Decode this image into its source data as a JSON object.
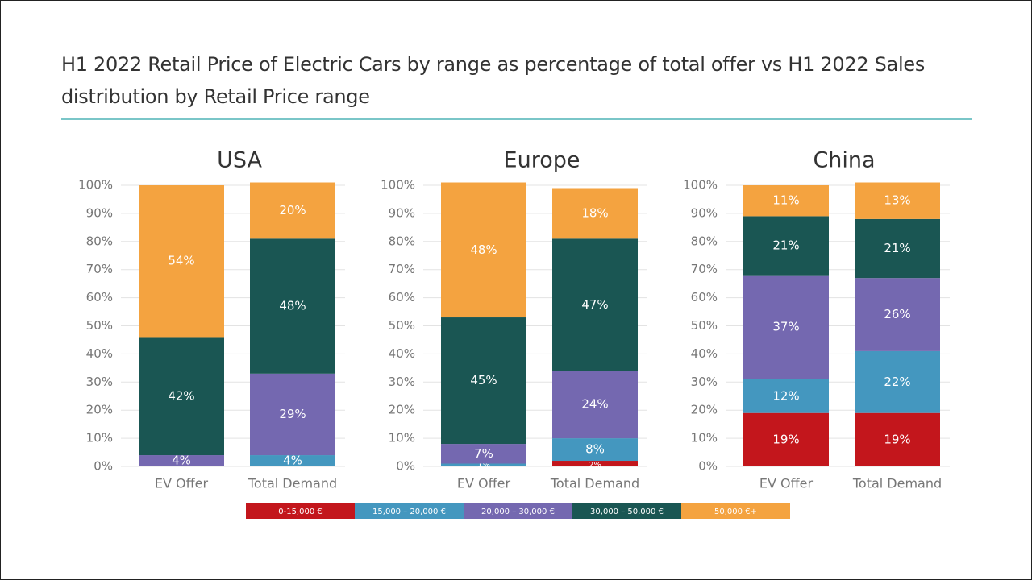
{
  "page_title": "H1 2022 Retail Price of Electric Cars by range as percentage of total offer vs H1 2022 Sales distribution by Retail Price range",
  "chart_data": [
    {
      "type": "stacked_bar",
      "title": "USA",
      "categories": [
        "EV Offer",
        "Total Demand"
      ],
      "ylim": [
        0,
        100
      ],
      "yticks": [
        {
          "value": 0,
          "label": "0%"
        },
        {
          "value": 10,
          "label": "10%"
        },
        {
          "value": 20,
          "label": "20%"
        },
        {
          "value": 30,
          "label": "30%"
        },
        {
          "value": 40,
          "label": "40%"
        },
        {
          "value": 50,
          "label": "50%"
        },
        {
          "value": 60,
          "label": "60%"
        },
        {
          "value": 70,
          "label": "70%"
        },
        {
          "value": 80,
          "label": "80%"
        },
        {
          "value": 90,
          "label": "90%"
        },
        {
          "value": 100,
          "label": "100%"
        }
      ],
      "grid": true,
      "series": [
        {
          "name": "0-15,000 €",
          "color": "#c3161c",
          "values": [
            0,
            0
          ],
          "value_labels": [
            null,
            null
          ]
        },
        {
          "name": "15,000 – 20,000 €",
          "color": "#4497bf",
          "values": [
            0,
            4
          ],
          "value_labels": [
            null,
            "4%"
          ]
        },
        {
          "name": "20,000 – 30,000 €",
          "color": "#7468b0",
          "values": [
            4,
            29
          ],
          "value_labels": [
            "4%",
            "29%"
          ]
        },
        {
          "name": "30,000 – 50,000 €",
          "color": "#1a5653",
          "values": [
            42,
            48
          ],
          "value_labels": [
            "42%",
            "48%"
          ]
        },
        {
          "name": "50,000 €+",
          "color": "#f4a340",
          "values": [
            54,
            20
          ],
          "value_labels": [
            "54%",
            "20%"
          ]
        }
      ]
    },
    {
      "type": "stacked_bar",
      "title": "Europe",
      "categories": [
        "EV Offer",
        "Total Demand"
      ],
      "ylim": [
        0,
        100
      ],
      "yticks": [
        {
          "value": 0,
          "label": "0%"
        },
        {
          "value": 10,
          "label": "10%"
        },
        {
          "value": 20,
          "label": "20%"
        },
        {
          "value": 30,
          "label": "30%"
        },
        {
          "value": 40,
          "label": "40%"
        },
        {
          "value": 50,
          "label": "50%"
        },
        {
          "value": 60,
          "label": "60%"
        },
        {
          "value": 70,
          "label": "70%"
        },
        {
          "value": 80,
          "label": "80%"
        },
        {
          "value": 90,
          "label": "90%"
        },
        {
          "value": 100,
          "label": "100%"
        }
      ],
      "grid": true,
      "series": [
        {
          "name": "0-15,000 €",
          "color": "#c3161c",
          "values": [
            0,
            2
          ],
          "value_labels": [
            null,
            "2%"
          ]
        },
        {
          "name": "15,000 – 20,000 €",
          "color": "#4497bf",
          "values": [
            1,
            8
          ],
          "value_labels": [
            "1%",
            "8%"
          ]
        },
        {
          "name": "20,000 – 30,000 €",
          "color": "#7468b0",
          "values": [
            7,
            24
          ],
          "value_labels": [
            "7%",
            "24%"
          ]
        },
        {
          "name": "30,000 – 50,000 €",
          "color": "#1a5653",
          "values": [
            45,
            47
          ],
          "value_labels": [
            "45%",
            "47%"
          ]
        },
        {
          "name": "50,000 €+",
          "color": "#f4a340",
          "values": [
            48,
            18
          ],
          "value_labels": [
            "48%",
            "18%"
          ]
        }
      ]
    },
    {
      "type": "stacked_bar",
      "title": "China",
      "categories": [
        "EV Offer",
        "Total Demand"
      ],
      "ylim": [
        0,
        100
      ],
      "yticks": [
        {
          "value": 0,
          "label": "0%"
        },
        {
          "value": 10,
          "label": "10%"
        },
        {
          "value": 20,
          "label": "20%"
        },
        {
          "value": 30,
          "label": "30%"
        },
        {
          "value": 40,
          "label": "40%"
        },
        {
          "value": 50,
          "label": "50%"
        },
        {
          "value": 60,
          "label": "60%"
        },
        {
          "value": 70,
          "label": "70%"
        },
        {
          "value": 80,
          "label": "80%"
        },
        {
          "value": 90,
          "label": "90%"
        },
        {
          "value": 100,
          "label": "100%"
        }
      ],
      "grid": true,
      "series": [
        {
          "name": "0-15,000 €",
          "color": "#c3161c",
          "values": [
            19,
            19
          ],
          "value_labels": [
            "19%",
            "19%"
          ]
        },
        {
          "name": "15,000 – 20,000 €",
          "color": "#4497bf",
          "values": [
            12,
            22
          ],
          "value_labels": [
            "12%",
            "22%"
          ]
        },
        {
          "name": "20,000 – 30,000 €",
          "color": "#7468b0",
          "values": [
            37,
            26
          ],
          "value_labels": [
            "37%",
            "26%"
          ]
        },
        {
          "name": "30,000 – 50,000 €",
          "color": "#1a5653",
          "values": [
            21,
            21
          ],
          "value_labels": [
            "21%",
            "21%"
          ]
        },
        {
          "name": "50,000 €+",
          "color": "#f4a340",
          "values": [
            11,
            13
          ],
          "value_labels": [
            "11%",
            "13%"
          ]
        }
      ]
    }
  ]
}
